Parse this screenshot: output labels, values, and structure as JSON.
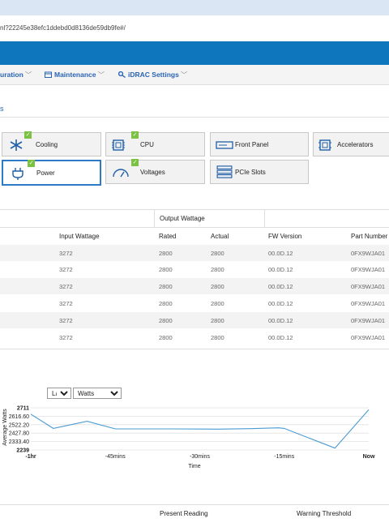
{
  "browser": {
    "url": "nl?22245e38efc1ddebd0d8136de59db9fe#/"
  },
  "nav": {
    "items": [
      {
        "label": "uration"
      },
      {
        "label": "Maintenance"
      },
      {
        "label": "iDRAC Settings"
      }
    ]
  },
  "page": {
    "section_fragment": "s"
  },
  "tiles": [
    {
      "label": "Cooling",
      "icon": "snowflake-icon",
      "ok": true
    },
    {
      "label": "CPU",
      "icon": "cpu-icon",
      "ok": true
    },
    {
      "label": "Front Panel",
      "icon": "front-panel-icon",
      "ok": false
    },
    {
      "label": "Accelerators",
      "icon": "accelerator-icon",
      "ok": false
    },
    {
      "label": "Power",
      "icon": "power-plug-icon",
      "ok": true,
      "selected": true
    },
    {
      "label": "Voltages",
      "icon": "gauge-icon",
      "ok": true
    },
    {
      "label": "PCIe Slots",
      "icon": "pcie-icon",
      "ok": false
    }
  ],
  "psu_table": {
    "group_header": "Output Wattage",
    "columns": [
      "Input Wattage",
      "Rated",
      "Actual",
      "FW Version",
      "Part Number"
    ],
    "rows": [
      [
        "3272",
        "2800",
        "2800",
        "00.0D.12",
        "0FX9WJA01"
      ],
      [
        "3272",
        "2800",
        "2800",
        "00.0D.12",
        "0FX9WJA01"
      ],
      [
        "3272",
        "2800",
        "2800",
        "00.0D.12",
        "0FX9WJA01"
      ],
      [
        "3272",
        "2800",
        "2800",
        "00.0D.12",
        "0FX9WJA01"
      ],
      [
        "3272",
        "2800",
        "2800",
        "00.0D.12",
        "0FX9WJA01"
      ],
      [
        "3272",
        "2800",
        "2800",
        "00.0D.12",
        "0FX9WJA01"
      ]
    ]
  },
  "chart_controls": {
    "range": "Last Hour",
    "unit": "Watts"
  },
  "chart_data": {
    "type": "line",
    "ylabel": "Average Watts",
    "xlabel": "Time",
    "ylim": [
      2239,
      2711
    ],
    "yticks": [
      "2711",
      "2616.60",
      "2522.20",
      "2427.80",
      "2333.40",
      "2239"
    ],
    "xticks": [
      "-1hr",
      "-45mins",
      "-30mins",
      "-15mins",
      "Now"
    ],
    "xlim": [
      -60,
      0
    ],
    "series": [
      {
        "color": "#4a9bd1",
        "points": [
          [
            -60,
            2640
          ],
          [
            -56,
            2480
          ],
          [
            -50,
            2560
          ],
          [
            -45,
            2475
          ],
          [
            -35,
            2475
          ],
          [
            -27,
            2472
          ],
          [
            -21,
            2478
          ],
          [
            -16,
            2487
          ],
          [
            -15,
            2480
          ],
          [
            -6,
            2260
          ],
          [
            0,
            2690
          ]
        ]
      }
    ]
  },
  "thresholds_table": {
    "columns": [
      "Present Reading",
      "Warning Threshold"
    ]
  }
}
